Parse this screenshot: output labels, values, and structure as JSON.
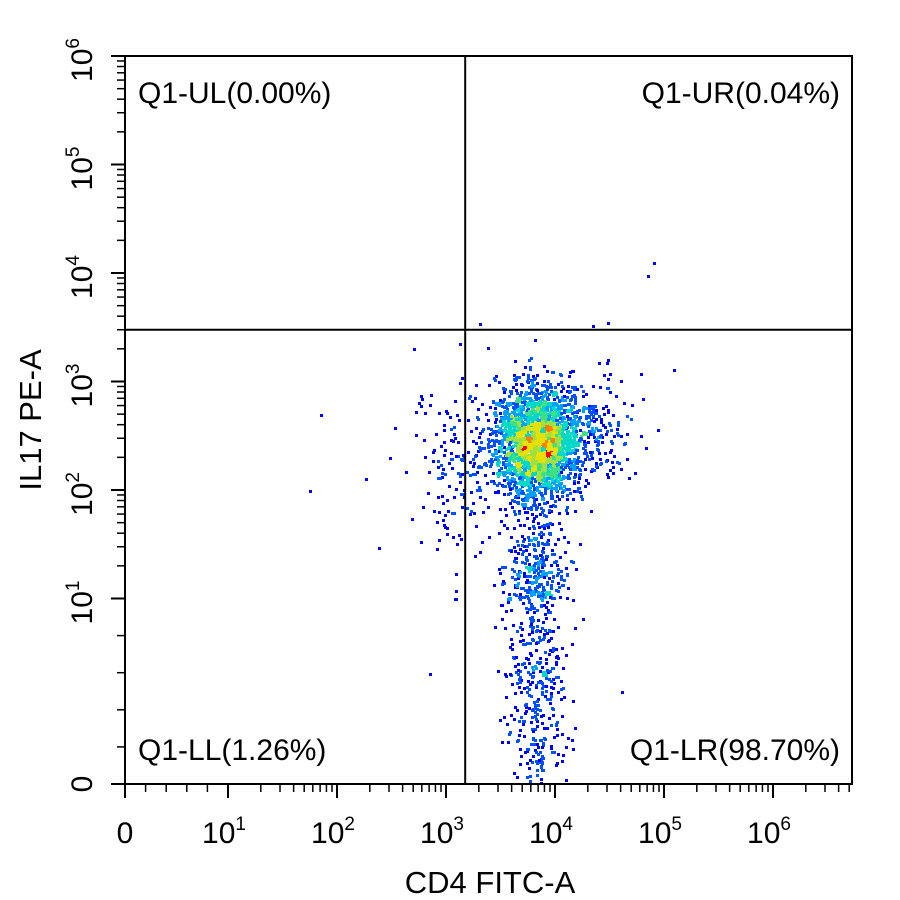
{
  "chart_data": {
    "type": "scatter",
    "plot_kind": "flow cytometry density dot plot",
    "title": "",
    "xlabel": "CD4 FITC-A",
    "ylabel": "IL17 PE-A",
    "x_scale": "biexponential",
    "y_scale": "biexponential",
    "xlim": [
      -500,
      4500000
    ],
    "ylim": [
      0,
      1000000
    ],
    "x_ticks": [
      {
        "base": "0",
        "exp": "",
        "value": 0
      },
      {
        "base": "10",
        "exp": "1",
        "value": 10
      },
      {
        "base": "10",
        "exp": "2",
        "value": 100
      },
      {
        "base": "10",
        "exp": "3",
        "value": 1000
      },
      {
        "base": "10",
        "exp": "4",
        "value": 10000
      },
      {
        "base": "10",
        "exp": "5",
        "value": 100000
      },
      {
        "base": "10",
        "exp": "6",
        "value": 1000000
      }
    ],
    "y_ticks": [
      {
        "base": "0",
        "exp": "",
        "value": 0
      },
      {
        "base": "10",
        "exp": "1",
        "value": 10
      },
      {
        "base": "10",
        "exp": "2",
        "value": 100
      },
      {
        "base": "10",
        "exp": "3",
        "value": 1000
      },
      {
        "base": "10",
        "exp": "4",
        "value": 10000
      },
      {
        "base": "10",
        "exp": "5",
        "value": 100000
      },
      {
        "base": "10",
        "exp": "6",
        "value": 1000000
      }
    ],
    "gate": {
      "x": 1500,
      "y": 3000
    },
    "quadrants": [
      {
        "id": "Q1-UL",
        "label": "Q1-UL(0.00%)",
        "percent": 0.0,
        "position": "top-left"
      },
      {
        "id": "Q1-UR",
        "label": "Q1-UR(0.04%)",
        "percent": 0.04,
        "position": "top-right"
      },
      {
        "id": "Q1-LL",
        "label": "Q1-LL(1.26%)",
        "percent": 1.26,
        "position": "bottom-left"
      },
      {
        "id": "Q1-LR",
        "label": "Q1-LR(98.70%)",
        "percent": 98.7,
        "position": "bottom-right"
      }
    ],
    "density_colors": [
      "#0000ff",
      "#0050ff",
      "#00a0ff",
      "#00d8c8",
      "#40e080",
      "#a0e040",
      "#e8e000",
      "#ff8000",
      "#ff0000"
    ],
    "main_population": {
      "x_center": 6500,
      "y_center": 250,
      "x_spread_log": 0.22,
      "y_spread_log": 0.45
    },
    "sparse_events": [
      {
        "x": 70,
        "y": 500
      },
      {
        "x": 55,
        "y": 100
      },
      {
        "x": 180,
        "y": 130
      },
      {
        "x": 240,
        "y": 30
      },
      {
        "x": 300,
        "y": 200
      },
      {
        "x": 330,
        "y": 380
      },
      {
        "x": 420,
        "y": 150
      },
      {
        "x": 480,
        "y": 55
      },
      {
        "x": 520,
        "y": 330
      },
      {
        "x": 700,
        "y": 6
      },
      {
        "x": 760,
        "y": 240
      },
      {
        "x": 900,
        "y": 90
      },
      {
        "x": 1000,
        "y": 40
      },
      {
        "x": 1200,
        "y": 12
      },
      {
        "x": 1300,
        "y": 450
      },
      {
        "x": 9000,
        "y": 2
      },
      {
        "x": 25000,
        "y": 1500
      },
      {
        "x": 30000,
        "y": 1600
      },
      {
        "x": 22000,
        "y": 3300
      },
      {
        "x": 30000,
        "y": 3500
      },
      {
        "x": 70000,
        "y": 9500
      },
      {
        "x": 80000,
        "y": 12500
      },
      {
        "x": 60000,
        "y": 1200
      },
      {
        "x": 120000,
        "y": 1300
      },
      {
        "x": 40000,
        "y": 5
      }
    ]
  }
}
